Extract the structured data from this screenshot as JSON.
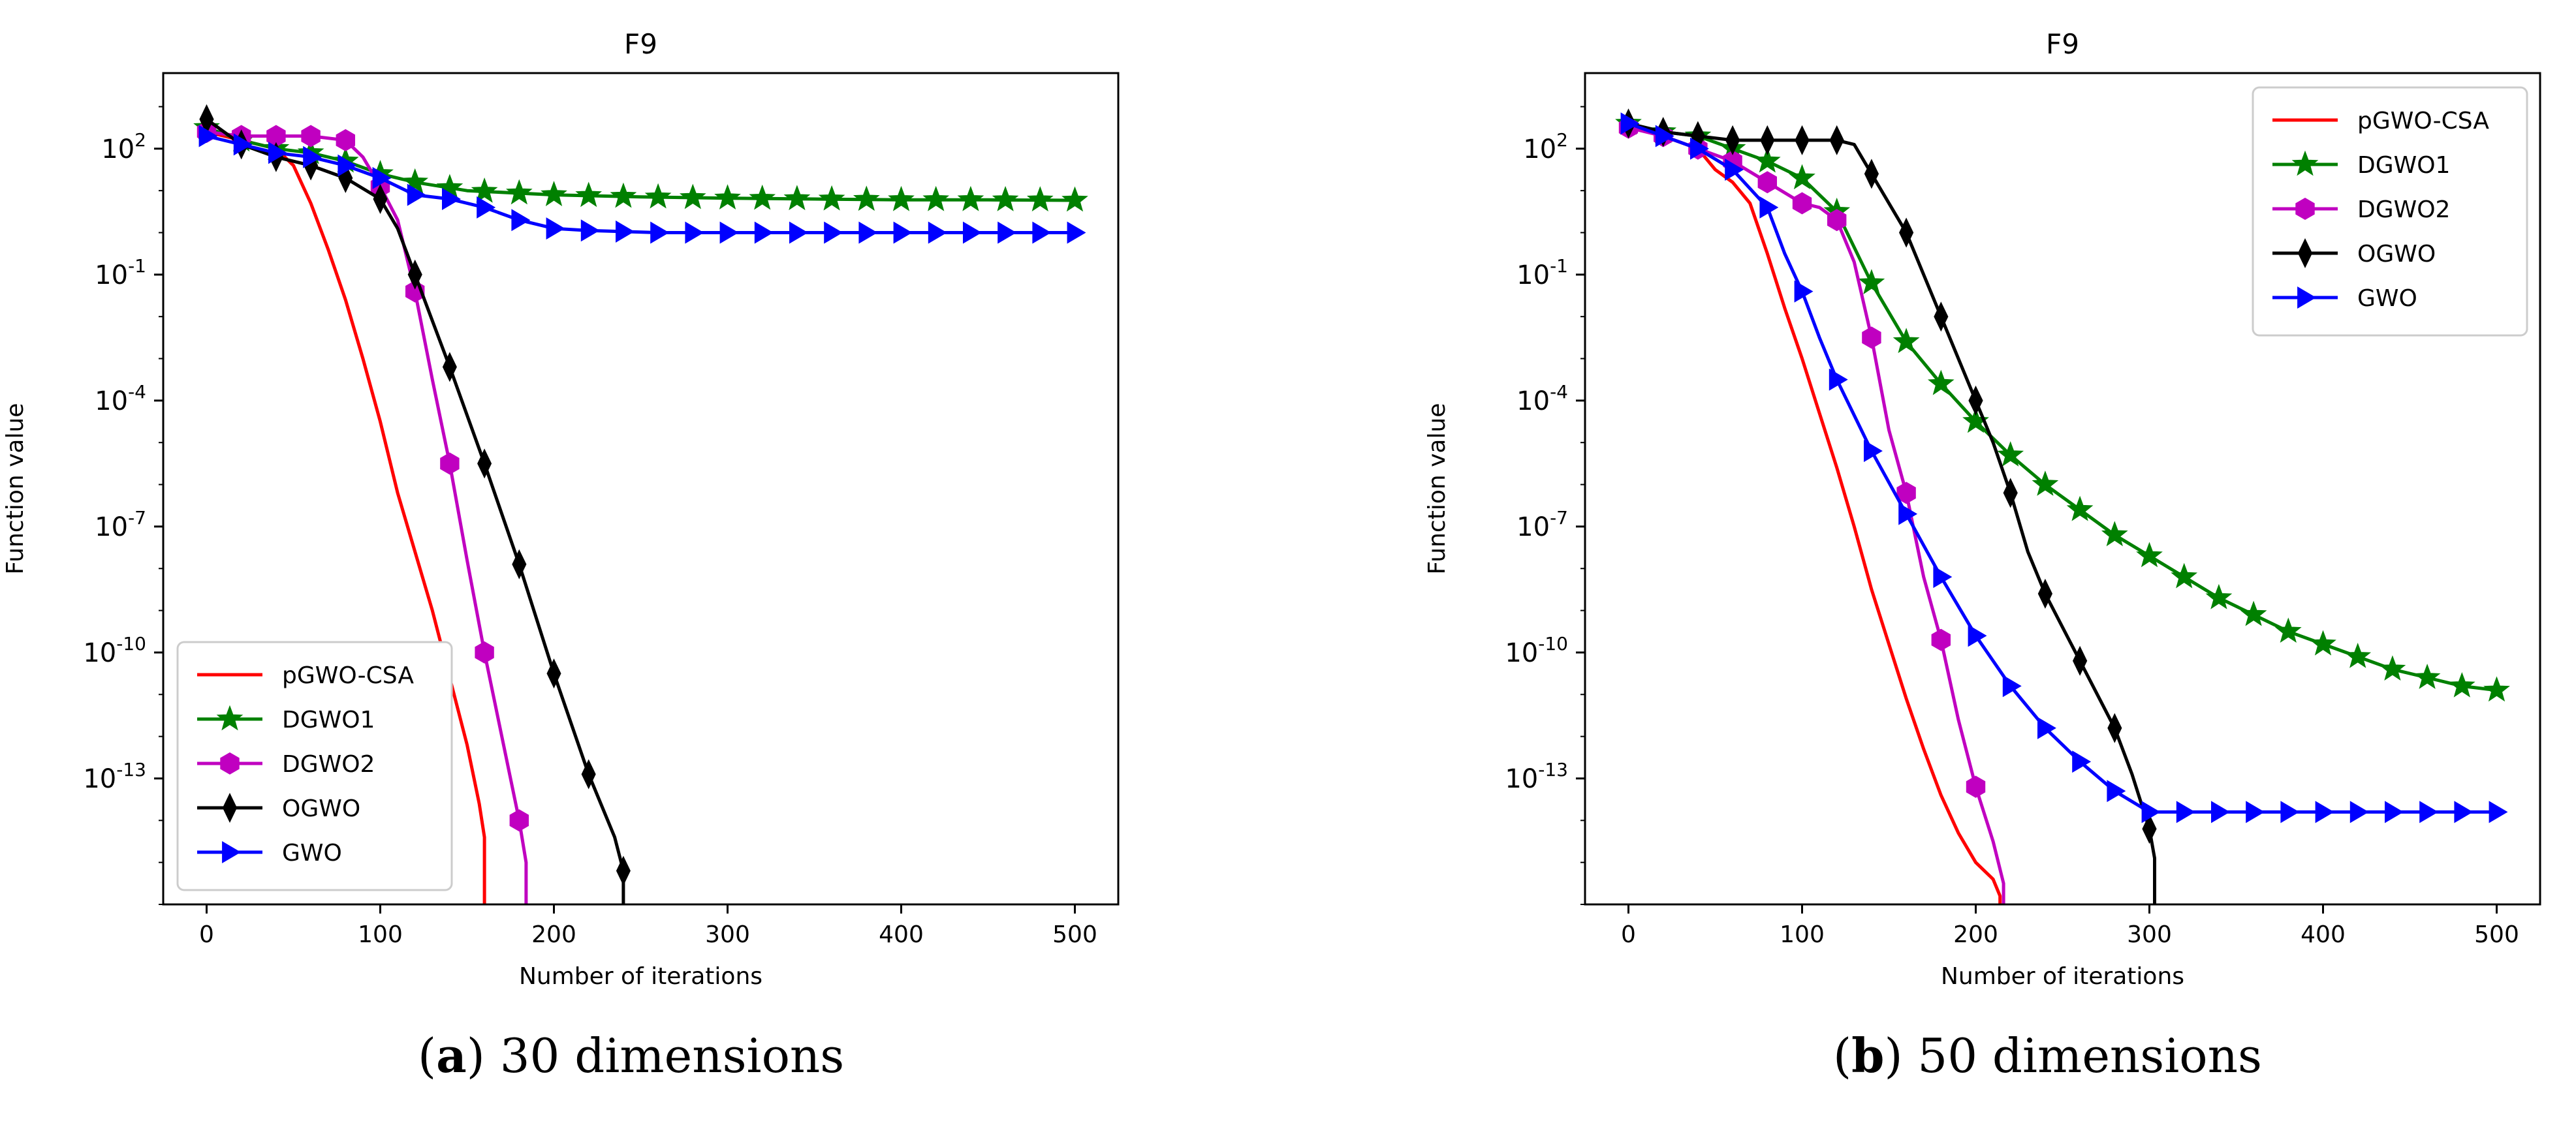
{
  "chart_data": [
    {
      "type": "line",
      "title": "F9",
      "xlabel": "Number of iterations",
      "ylabel": "Function value",
      "yscale": "log",
      "xlim": [
        -25,
        525
      ],
      "ylim_exp": [
        -16,
        3.8
      ],
      "xticks": [
        0,
        100,
        200,
        300,
        400,
        500
      ],
      "yticks": [
        {
          "exp": 2,
          "label_base": "10",
          "label_exp": "2"
        },
        {
          "exp": -1,
          "label_base": "10",
          "label_exp": "-1"
        },
        {
          "exp": -4,
          "label_base": "10",
          "label_exp": "-4"
        },
        {
          "exp": -7,
          "label_base": "10",
          "label_exp": "-7"
        },
        {
          "exp": -10,
          "label_base": "10",
          "label_exp": "-10"
        },
        {
          "exp": -13,
          "label_base": "10",
          "label_exp": "-13"
        }
      ],
      "legend_position": "lower-left",
      "caption": {
        "letter": "a",
        "text": " 30 dimensions"
      },
      "series": [
        {
          "name": "pGWO-CSA",
          "color": "#ff0000",
          "marker": "none",
          "points": [
            [
              0,
              2.4
            ],
            [
              20,
              2.2
            ],
            [
              40,
              2.0
            ],
            [
              50,
              1.6
            ],
            [
              60,
              0.7
            ],
            [
              70,
              -0.4
            ],
            [
              80,
              -1.6
            ],
            [
              90,
              -3.0
            ],
            [
              100,
              -4.5
            ],
            [
              110,
              -6.2
            ],
            [
              120,
              -7.6
            ],
            [
              130,
              -9.0
            ],
            [
              140,
              -10.6
            ],
            [
              150,
              -12.2
            ],
            [
              157,
              -13.6
            ],
            [
              160,
              -14.4
            ],
            [
              160,
              -16
            ]
          ]
        },
        {
          "name": "DGWO1",
          "color": "#008000",
          "marker": "star",
          "points": [
            [
              0,
              2.5
            ],
            [
              20,
              2.2
            ],
            [
              40,
              2.0
            ],
            [
              60,
              1.9
            ],
            [
              80,
              1.7
            ],
            [
              100,
              1.4
            ],
            [
              120,
              1.2
            ],
            [
              150,
              1.0
            ],
            [
              200,
              0.9
            ],
            [
              250,
              0.85
            ],
            [
              300,
              0.82
            ],
            [
              350,
              0.8
            ],
            [
              400,
              0.78
            ],
            [
              450,
              0.78
            ],
            [
              500,
              0.77
            ]
          ]
        },
        {
          "name": "DGWO2",
          "color": "#c000c0",
          "marker": "hexagon",
          "points": [
            [
              0,
              2.4
            ],
            [
              20,
              2.3
            ],
            [
              40,
              2.3
            ],
            [
              60,
              2.3
            ],
            [
              80,
              2.2
            ],
            [
              90,
              1.8
            ],
            [
              100,
              1.1
            ],
            [
              110,
              0.3
            ],
            [
              120,
              -1.4
            ],
            [
              130,
              -3.5
            ],
            [
              140,
              -5.5
            ],
            [
              150,
              -7.8
            ],
            [
              160,
              -10.0
            ],
            [
              170,
              -12.0
            ],
            [
              180,
              -14.0
            ],
            [
              184,
              -15.0
            ],
            [
              184,
              -16
            ]
          ]
        },
        {
          "name": "OGWO",
          "color": "#000000",
          "marker": "diamond",
          "points": [
            [
              0,
              2.7
            ],
            [
              20,
              2.1
            ],
            [
              40,
              1.8
            ],
            [
              60,
              1.6
            ],
            [
              80,
              1.3
            ],
            [
              100,
              0.8
            ],
            [
              110,
              0.1
            ],
            [
              120,
              -1.0
            ],
            [
              140,
              -3.2
            ],
            [
              160,
              -5.5
            ],
            [
              180,
              -7.9
            ],
            [
              200,
              -10.5
            ],
            [
              220,
              -12.9
            ],
            [
              235,
              -14.4
            ],
            [
              240,
              -15.2
            ],
            [
              240,
              -16
            ]
          ]
        },
        {
          "name": "GWO",
          "color": "#0000ff",
          "marker": "triangle-right",
          "points": [
            [
              0,
              2.3
            ],
            [
              20,
              2.1
            ],
            [
              40,
              1.9
            ],
            [
              60,
              1.8
            ],
            [
              80,
              1.6
            ],
            [
              100,
              1.3
            ],
            [
              120,
              0.9
            ],
            [
              140,
              0.8
            ],
            [
              160,
              0.6
            ],
            [
              170,
              0.45
            ],
            [
              180,
              0.3
            ],
            [
              200,
              0.1
            ],
            [
              220,
              0.05
            ],
            [
              260,
              0.0
            ],
            [
              300,
              0.0
            ],
            [
              400,
              0.0
            ],
            [
              500,
              0.0
            ]
          ]
        }
      ]
    },
    {
      "type": "line",
      "title": "F9",
      "xlabel": "Number of iterations",
      "ylabel": "Function value",
      "yscale": "log",
      "xlim": [
        -25,
        525
      ],
      "ylim_exp": [
        -16,
        3.8
      ],
      "xticks": [
        0,
        100,
        200,
        300,
        400,
        500
      ],
      "yticks": [
        {
          "exp": 2,
          "label_base": "10",
          "label_exp": "2"
        },
        {
          "exp": -1,
          "label_base": "10",
          "label_exp": "-1"
        },
        {
          "exp": -4,
          "label_base": "10",
          "label_exp": "-4"
        },
        {
          "exp": -7,
          "label_base": "10",
          "label_exp": "-7"
        },
        {
          "exp": -10,
          "label_base": "10",
          "label_exp": "-10"
        },
        {
          "exp": -13,
          "label_base": "10",
          "label_exp": "-13"
        }
      ],
      "legend_position": "upper-right",
      "caption": {
        "letter": "b",
        "text": " 50 dimensions"
      },
      "series": [
        {
          "name": "pGWO-CSA",
          "color": "#ff0000",
          "marker": "none",
          "points": [
            [
              0,
              2.6
            ],
            [
              20,
              2.3
            ],
            [
              40,
              2.0
            ],
            [
              50,
              1.5
            ],
            [
              60,
              1.2
            ],
            [
              70,
              0.7
            ],
            [
              80,
              -0.5
            ],
            [
              90,
              -1.8
            ],
            [
              100,
              -3.0
            ],
            [
              110,
              -4.3
            ],
            [
              120,
              -5.6
            ],
            [
              130,
              -7.0
            ],
            [
              140,
              -8.5
            ],
            [
              150,
              -9.8
            ],
            [
              160,
              -11.1
            ],
            [
              170,
              -12.3
            ],
            [
              180,
              -13.4
            ],
            [
              190,
              -14.3
            ],
            [
              200,
              -15.0
            ],
            [
              210,
              -15.4
            ],
            [
              214,
              -15.8
            ],
            [
              214,
              -16
            ]
          ]
        },
        {
          "name": "DGWO1",
          "color": "#008000",
          "marker": "star",
          "points": [
            [
              0,
              2.6
            ],
            [
              20,
              2.4
            ],
            [
              40,
              2.3
            ],
            [
              60,
              2.0
            ],
            [
              80,
              1.7
            ],
            [
              100,
              1.3
            ],
            [
              120,
              0.5
            ],
            [
              140,
              -1.2
            ],
            [
              160,
              -2.6
            ],
            [
              180,
              -3.6
            ],
            [
              200,
              -4.5
            ],
            [
              220,
              -5.3
            ],
            [
              240,
              -6.0
            ],
            [
              260,
              -6.6
            ],
            [
              280,
              -7.2
            ],
            [
              300,
              -7.7
            ],
            [
              320,
              -8.2
            ],
            [
              340,
              -8.7
            ],
            [
              360,
              -9.1
            ],
            [
              380,
              -9.5
            ],
            [
              400,
              -9.8
            ],
            [
              420,
              -10.1
            ],
            [
              440,
              -10.4
            ],
            [
              460,
              -10.6
            ],
            [
              480,
              -10.8
            ],
            [
              500,
              -10.9
            ]
          ]
        },
        {
          "name": "DGWO2",
          "color": "#c000c0",
          "marker": "hexagon",
          "points": [
            [
              0,
              2.5
            ],
            [
              20,
              2.3
            ],
            [
              40,
              2.0
            ],
            [
              60,
              1.7
            ],
            [
              80,
              1.2
            ],
            [
              100,
              0.7
            ],
            [
              110,
              0.6
            ],
            [
              120,
              0.3
            ],
            [
              130,
              -0.7
            ],
            [
              140,
              -2.5
            ],
            [
              150,
              -4.7
            ],
            [
              160,
              -6.2
            ],
            [
              170,
              -8.2
            ],
            [
              180,
              -9.7
            ],
            [
              190,
              -11.6
            ],
            [
              200,
              -13.2
            ],
            [
              210,
              -14.5
            ],
            [
              216,
              -15.5
            ],
            [
              216,
              -16
            ]
          ]
        },
        {
          "name": "OGWO",
          "color": "#000000",
          "marker": "diamond",
          "points": [
            [
              0,
              2.6
            ],
            [
              20,
              2.4
            ],
            [
              40,
              2.3
            ],
            [
              60,
              2.2
            ],
            [
              80,
              2.2
            ],
            [
              100,
              2.2
            ],
            [
              120,
              2.2
            ],
            [
              130,
              2.1
            ],
            [
              140,
              1.4
            ],
            [
              160,
              0.0
            ],
            [
              180,
              -2.0
            ],
            [
              200,
              -4.0
            ],
            [
              210,
              -5.0
            ],
            [
              220,
              -6.2
            ],
            [
              230,
              -7.6
            ],
            [
              240,
              -8.6
            ],
            [
              260,
              -10.2
            ],
            [
              280,
              -11.8
            ],
            [
              290,
              -12.9
            ],
            [
              300,
              -14.2
            ],
            [
              303,
              -14.9
            ],
            [
              303,
              -16
            ]
          ]
        },
        {
          "name": "GWO",
          "color": "#0000ff",
          "marker": "triangle-right",
          "points": [
            [
              0,
              2.6
            ],
            [
              20,
              2.3
            ],
            [
              40,
              2.0
            ],
            [
              60,
              1.5
            ],
            [
              80,
              0.6
            ],
            [
              90,
              -0.5
            ],
            [
              100,
              -1.4
            ],
            [
              110,
              -2.5
            ],
            [
              120,
              -3.5
            ],
            [
              140,
              -5.2
            ],
            [
              160,
              -6.7
            ],
            [
              180,
              -8.2
            ],
            [
              200,
              -9.6
            ],
            [
              220,
              -10.8
            ],
            [
              240,
              -11.8
            ],
            [
              260,
              -12.6
            ],
            [
              280,
              -13.3
            ],
            [
              300,
              -13.8
            ],
            [
              320,
              -13.8
            ],
            [
              400,
              -13.8
            ],
            [
              500,
              -13.8
            ]
          ]
        }
      ]
    }
  ]
}
